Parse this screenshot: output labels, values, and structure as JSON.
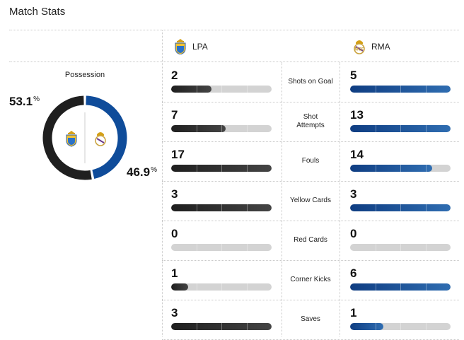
{
  "header": {
    "title": "Match Stats"
  },
  "teams": {
    "home": {
      "abbr": "LPA",
      "crest_icon": "las-palmas-crest-icon",
      "color": "#1f1f1f"
    },
    "away": {
      "abbr": "RMA",
      "crest_icon": "real-madrid-crest-icon",
      "color": "#0f4c9a"
    }
  },
  "possession": {
    "label": "Possession",
    "home_value": "53.1",
    "away_value": "46.9",
    "unit": "%",
    "home_fraction": 0.531,
    "away_fraction": 0.469
  },
  "stats": [
    {
      "label": "Shots on Goal",
      "home": "2",
      "away": "5",
      "home_fill": 0.4,
      "away_fill": 1.0
    },
    {
      "label": "Shot Attempts",
      "home": "7",
      "away": "13",
      "home_fill": 0.54,
      "away_fill": 1.0
    },
    {
      "label": "Fouls",
      "home": "17",
      "away": "14",
      "home_fill": 1.0,
      "away_fill": 0.82
    },
    {
      "label": "Yellow Cards",
      "home": "3",
      "away": "3",
      "home_fill": 1.0,
      "away_fill": 1.0
    },
    {
      "label": "Red Cards",
      "home": "0",
      "away": "0",
      "home_fill": 0.0,
      "away_fill": 0.0
    },
    {
      "label": "Corner Kicks",
      "home": "1",
      "away": "6",
      "home_fill": 0.17,
      "away_fill": 1.0
    },
    {
      "label": "Saves",
      "home": "3",
      "away": "1",
      "home_fill": 1.0,
      "away_fill": 0.33
    }
  ]
}
